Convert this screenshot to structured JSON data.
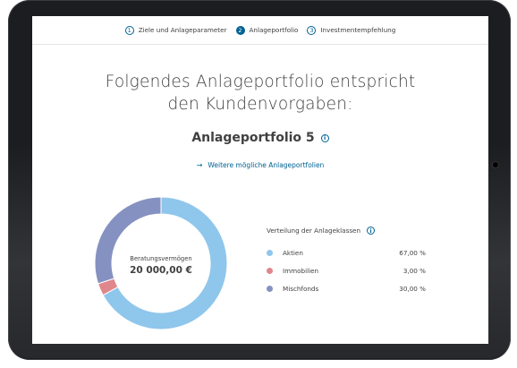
{
  "stepper": {
    "steps": [
      {
        "num": "1",
        "label": "Ziele und Anlageparameter"
      },
      {
        "num": "2",
        "label": "Anlageportfolio"
      },
      {
        "num": "3",
        "label": "Investmentempfehlung"
      }
    ]
  },
  "main": {
    "title_line1": "Folgendes Anlageportfolio entspricht",
    "title_line2": "den Kundenvorgaben:",
    "portfolio_name": "Anlageportfolio 5",
    "more_link": "Weitere mögliche Anlageportfolien"
  },
  "donut": {
    "center_label": "Beratungsvermögen",
    "center_value": "20 000,00 €"
  },
  "legend": {
    "title": "Verteilung der Anlageklassen",
    "items": [
      {
        "label": "Aktien",
        "value": "67,00 %",
        "share": 67.0,
        "color": "#8fc6ec"
      },
      {
        "label": "Immobilien",
        "value": "3,00 %",
        "share": 3.0,
        "color": "#e0878c"
      },
      {
        "label": "Mischfonds",
        "value": "30,00 %",
        "share": 30.0,
        "color": "#8592c1"
      }
    ]
  },
  "icons": {
    "info": "info-icon",
    "arrow": "arrow-right-icon"
  }
}
